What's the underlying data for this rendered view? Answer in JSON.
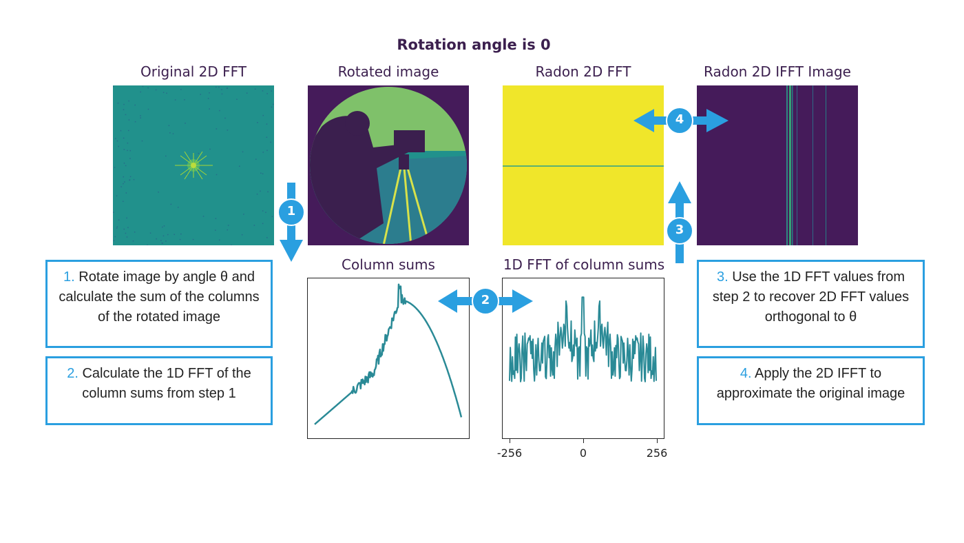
{
  "title": "Rotation angle is 0",
  "panels": {
    "original_fft": {
      "title": "Original 2D FFT"
    },
    "rotated": {
      "title": "Rotated image"
    },
    "radon_fft": {
      "title": "Radon 2D FFT"
    },
    "radon_ifft": {
      "title": "Radon 2D IFFT Image"
    },
    "column_sums": {
      "title": "Column sums"
    },
    "fft_column_sums": {
      "title": "1D FFT of column sums",
      "x_ticks": [
        "-256",
        "0",
        "256"
      ]
    }
  },
  "steps": [
    {
      "num": "1.",
      "text": "Rotate image by angle θ and calculate the sum of the columns of the rotated image"
    },
    {
      "num": "2.",
      "text": "Calculate the 1D FFT of the column sums from step 1"
    },
    {
      "num": "3.",
      "text": "Use the 1D FFT values from step 2 to recover 2D FFT values orthogonal to θ"
    },
    {
      "num": "4.",
      "text": "Apply the 2D IFFT to approximate the original image"
    }
  ],
  "badges": [
    "1",
    "2",
    "3",
    "4"
  ],
  "colors": {
    "accent": "#2a9fe0",
    "teal": "#21918c",
    "yellow": "#f0e62a",
    "dark_purple": "#451b5a",
    "green": "#7fc16a",
    "line": "#2a8a96"
  }
}
